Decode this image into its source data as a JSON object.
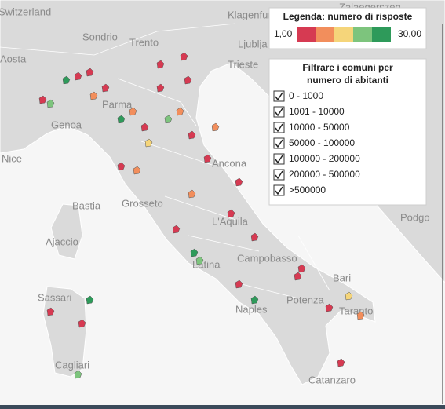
{
  "map": {
    "labels": [
      "Switzerland",
      "Klagenfurt",
      "Zalaegerszeg",
      "Sondrio",
      "Trento",
      "Ljublja",
      "Aosta",
      "Trieste",
      "Parma",
      "Genoa",
      "Nice",
      "Ancona",
      "Bastia",
      "Grosseto",
      "Ajaccio",
      "L'Aquila",
      "Campobasso",
      "Latina",
      "Sassari",
      "Bari",
      "Naples",
      "Potenza",
      "Taranto",
      "Cagliari",
      "Catanzaro",
      "Podgo"
    ]
  },
  "legend": {
    "title": "Legenda: numero di risposte",
    "min_label": "1,00",
    "max_label": "30,00",
    "colors": [
      "#d63a52",
      "#f28e5c",
      "#f5d57a",
      "#7dc47d",
      "#2e9a5a"
    ]
  },
  "filter": {
    "title_lines": [
      "Filtrare i comuni per",
      "numero di abitanti"
    ],
    "items": [
      {
        "label": "0 - 1000",
        "checked": true
      },
      {
        "label": "1001 - 10000",
        "checked": true
      },
      {
        "label": "10000 - 50000",
        "checked": true
      },
      {
        "label": "50000 - 100000",
        "checked": true
      },
      {
        "label": "100000 - 200000",
        "checked": true
      },
      {
        "label": "200000 - 500000",
        "checked": true
      },
      {
        "label": ">500000",
        "checked": true
      }
    ]
  }
}
